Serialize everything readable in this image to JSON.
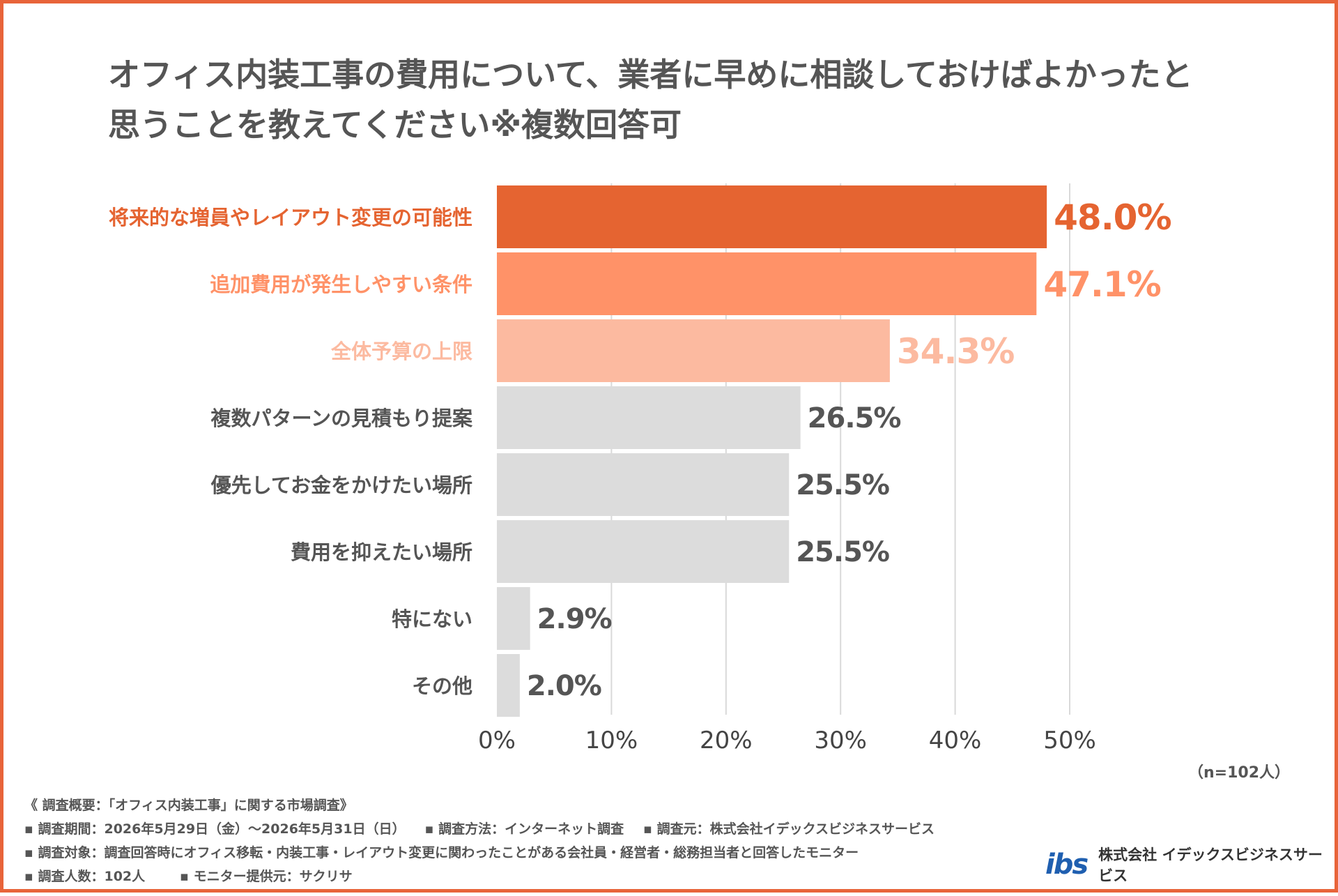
{
  "title_line1": "オフィス内装工事の費用について、業者に早めに相談しておけばよかったと",
  "title_line2": "思うことを教えてください※複数回答可",
  "chart_data": {
    "type": "bar",
    "orientation": "horizontal",
    "categories": [
      "将来的な増員やレイアウト変更の可能性",
      "追加費用が発生しやすい条件",
      "全体予算の上限",
      "複数パターンの見積もり提案",
      "優先してお金をかけたい場所",
      "費用を抑えたい場所",
      "特にない",
      "その他"
    ],
    "values": [
      48.0,
      47.1,
      34.3,
      26.5,
      25.5,
      25.5,
      2.9,
      2.0
    ],
    "value_labels": [
      "48.0%",
      "47.1%",
      "34.3%",
      "26.5%",
      "25.5%",
      "25.5%",
      "2.9%",
      "2.0%"
    ],
    "xlim": [
      0,
      50
    ],
    "x_ticks": [
      "0%",
      "10%",
      "20%",
      "30%",
      "40%",
      "50%"
    ],
    "grid": true,
    "colors": {
      "bars": [
        "#e56431",
        "#ff9268",
        "#fcbaa0",
        "#dcdcdc",
        "#dcdcdc",
        "#dcdcdc",
        "#dcdcdc",
        "#dcdcdc"
      ],
      "labels": [
        "#e56431",
        "#ff9268",
        "#fcbaa0",
        "#555555",
        "#555555",
        "#555555",
        "#555555",
        "#555555"
      ]
    }
  },
  "n_label": "（n=102人）",
  "footer": {
    "line1": "《 調査概要：「オフィス内装工事」に関する市場調査》",
    "line2a": "▪ 調査期間：2026年5月29日（金）～2026年5月31日（日）",
    "line2b": "▪ 調査方法：インターネット調査",
    "line2c": "▪ 調査元：株式会社イデックスビジネスサービス",
    "line3": "▪ 調査対象：調査回答時にオフィス移転・内装工事・レイアウト変更に関わったことがある会社員・経営者・総務担当者と回答したモニター",
    "line4a": "▪ 調査人数：102人",
    "line4b": "▪ モニター提供元：サクリサ"
  },
  "logo": {
    "mark": "ibs",
    "company": "株式会社 イデックスビジネスサービス"
  }
}
